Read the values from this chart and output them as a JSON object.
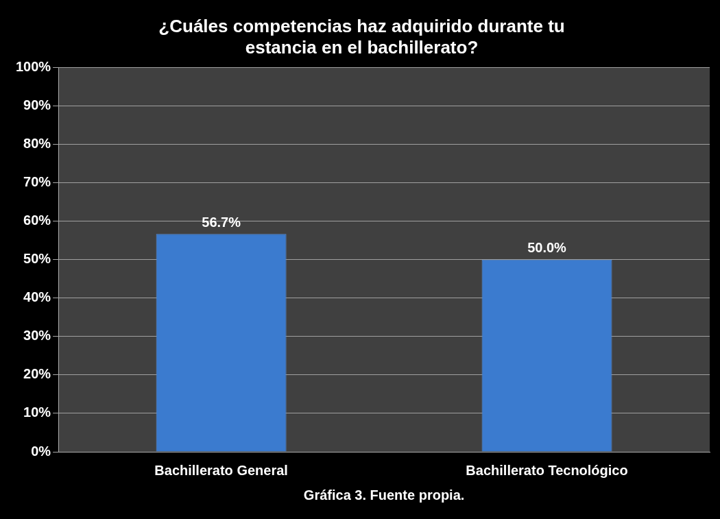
{
  "chart_data": {
    "type": "bar",
    "title": "¿Cuáles competencias haz adquirido durante tu estancia en el bachillerato?",
    "categories": [
      "Bachillerato General",
      "Bachillerato Tecnológico"
    ],
    "values": [
      56.7,
      50.0
    ],
    "value_labels": [
      "56.7%",
      "50.0%"
    ],
    "color": "#3b7bcf",
    "ylim": [
      0,
      100
    ],
    "yticks": [
      {
        "value": 0,
        "label": "0%"
      },
      {
        "value": 10,
        "label": "10%"
      },
      {
        "value": 20,
        "label": "20%"
      },
      {
        "value": 30,
        "label": "30%"
      },
      {
        "value": 40,
        "label": "40%"
      },
      {
        "value": 50,
        "label": "50%"
      },
      {
        "value": 60,
        "label": "60%"
      },
      {
        "value": 70,
        "label": "70%"
      },
      {
        "value": 80,
        "label": "80%"
      },
      {
        "value": 90,
        "label": "90%"
      },
      {
        "value": 100,
        "label": "100%"
      }
    ],
    "grid": "y",
    "legend": false,
    "annotations": [
      "Gráfica 3. Fuente propia."
    ]
  }
}
